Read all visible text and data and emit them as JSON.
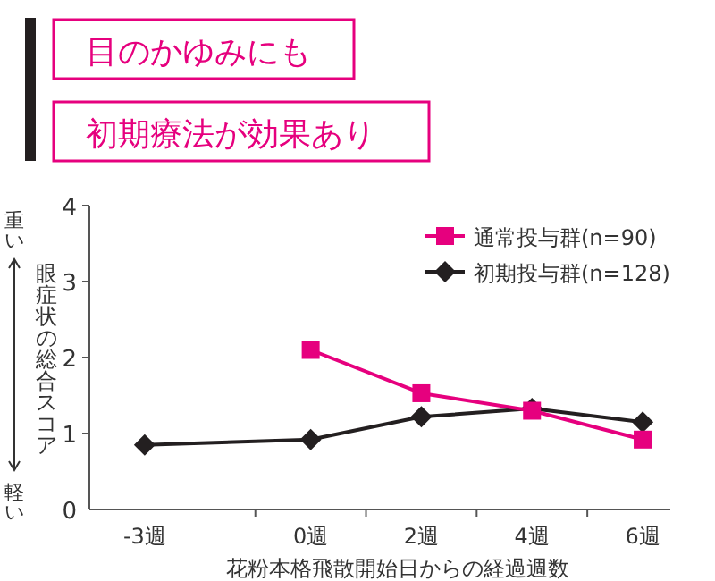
{
  "chart_data": {
    "type": "line",
    "title": "目のかゆみにも",
    "subtitle": "初期療法が効果あり",
    "xlabel": "花粉本格飛散開始日からの経過週数",
    "ylabel": "眼症状の総合スコア",
    "annotations": [
      "重い",
      "軽い"
    ],
    "x": [
      -3,
      0,
      2,
      4,
      6
    ],
    "series": [
      {
        "name": "通常投与群(n=90)",
        "color": "#e6007e",
        "marker": "square",
        "values": [
          null,
          2.1,
          1.53,
          1.3,
          0.92
        ]
      },
      {
        "name": "初期投与群(n=128)",
        "color": "#231f20",
        "marker": "diamond",
        "values": [
          0.85,
          0.92,
          1.22,
          1.33,
          1.15
        ]
      }
    ],
    "xlim": [
      -4,
      6.5
    ],
    "xticks": [
      {
        "value": -3,
        "label": "-3週"
      },
      {
        "value": -1,
        "label": null
      },
      {
        "value": 0,
        "label": "0週"
      },
      {
        "value": 1,
        "label": null
      },
      {
        "value": 2,
        "label": "2週"
      },
      {
        "value": 3,
        "label": null
      },
      {
        "value": 4,
        "label": "4週"
      },
      {
        "value": 5,
        "label": null
      },
      {
        "value": 6,
        "label": "6週"
      }
    ],
    "ylim": [
      0,
      4
    ],
    "yticks": [
      0,
      1,
      2,
      3,
      4
    ],
    "legend": "top right",
    "line_style": "solid"
  }
}
